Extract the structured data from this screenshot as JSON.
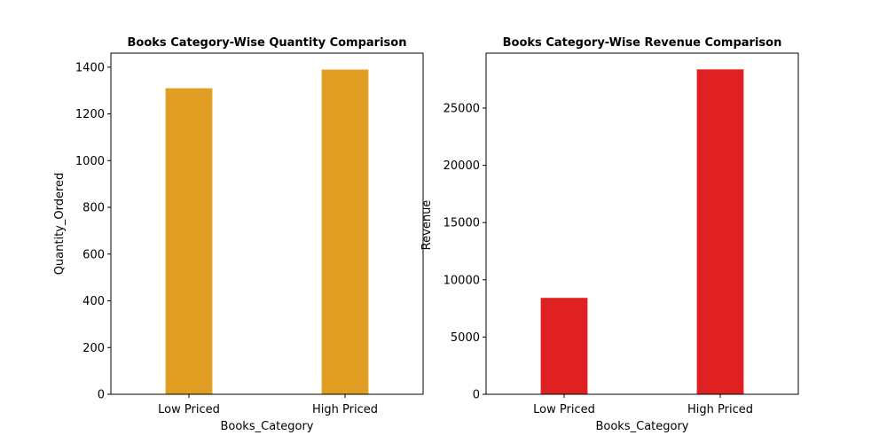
{
  "chart_data": [
    {
      "type": "bar",
      "title": "Books Category-Wise Quantity Comparison",
      "xlabel": "Books_Category",
      "ylabel": "Quantity_Ordered",
      "categories": [
        "Low Priced",
        "High Priced"
      ],
      "values": [
        1310,
        1390
      ],
      "ylim": [
        0,
        1460
      ],
      "yticks": [
        0,
        200,
        400,
        600,
        800,
        1000,
        1200,
        1400
      ],
      "color": "#e09e22",
      "grid": false
    },
    {
      "type": "bar",
      "title": "Books Category-Wise Revenue Comparison",
      "xlabel": "Books_Category",
      "ylabel": "Revenue",
      "categories": [
        "Low Priced",
        "High Priced"
      ],
      "values": [
        8420,
        28380
      ],
      "ylim": [
        0,
        29800
      ],
      "yticks": [
        0,
        5000,
        10000,
        15000,
        20000,
        25000
      ],
      "color": "#df2121",
      "grid": false
    }
  ]
}
